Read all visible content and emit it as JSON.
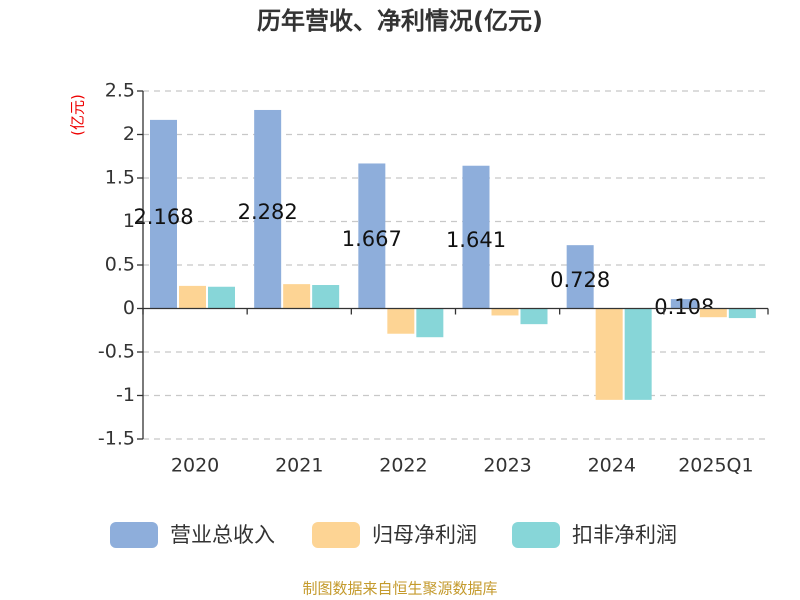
{
  "chart_data": {
    "type": "bar",
    "title": "历年营收、净利情况(亿元)",
    "y_label": "(亿元)",
    "categories": [
      "2020",
      "2021",
      "2022",
      "2023",
      "2024",
      "2025Q1"
    ],
    "series": [
      {
        "name": "营业总收入",
        "color": "#8eaedb",
        "values": [
          2.168,
          2.282,
          1.667,
          1.641,
          0.728,
          0.108
        ],
        "show_labels": true
      },
      {
        "name": "归母净利润",
        "color": "#fdd494",
        "values": [
          0.26,
          0.28,
          -0.29,
          -0.08,
          -1.05,
          -0.1
        ]
      },
      {
        "name": "扣非净利润",
        "color": "#87d6d8",
        "values": [
          0.25,
          0.27,
          -0.33,
          -0.18,
          -1.05,
          -0.11
        ]
      }
    ],
    "ylim": [
      -1.5,
      2.5
    ],
    "yticks": [
      -1.5,
      -1,
      -0.5,
      0,
      0.5,
      1,
      1.5,
      2,
      2.5
    ],
    "grid": true,
    "legend": "bottom",
    "source": "制图数据来自恒生聚源数据库"
  }
}
